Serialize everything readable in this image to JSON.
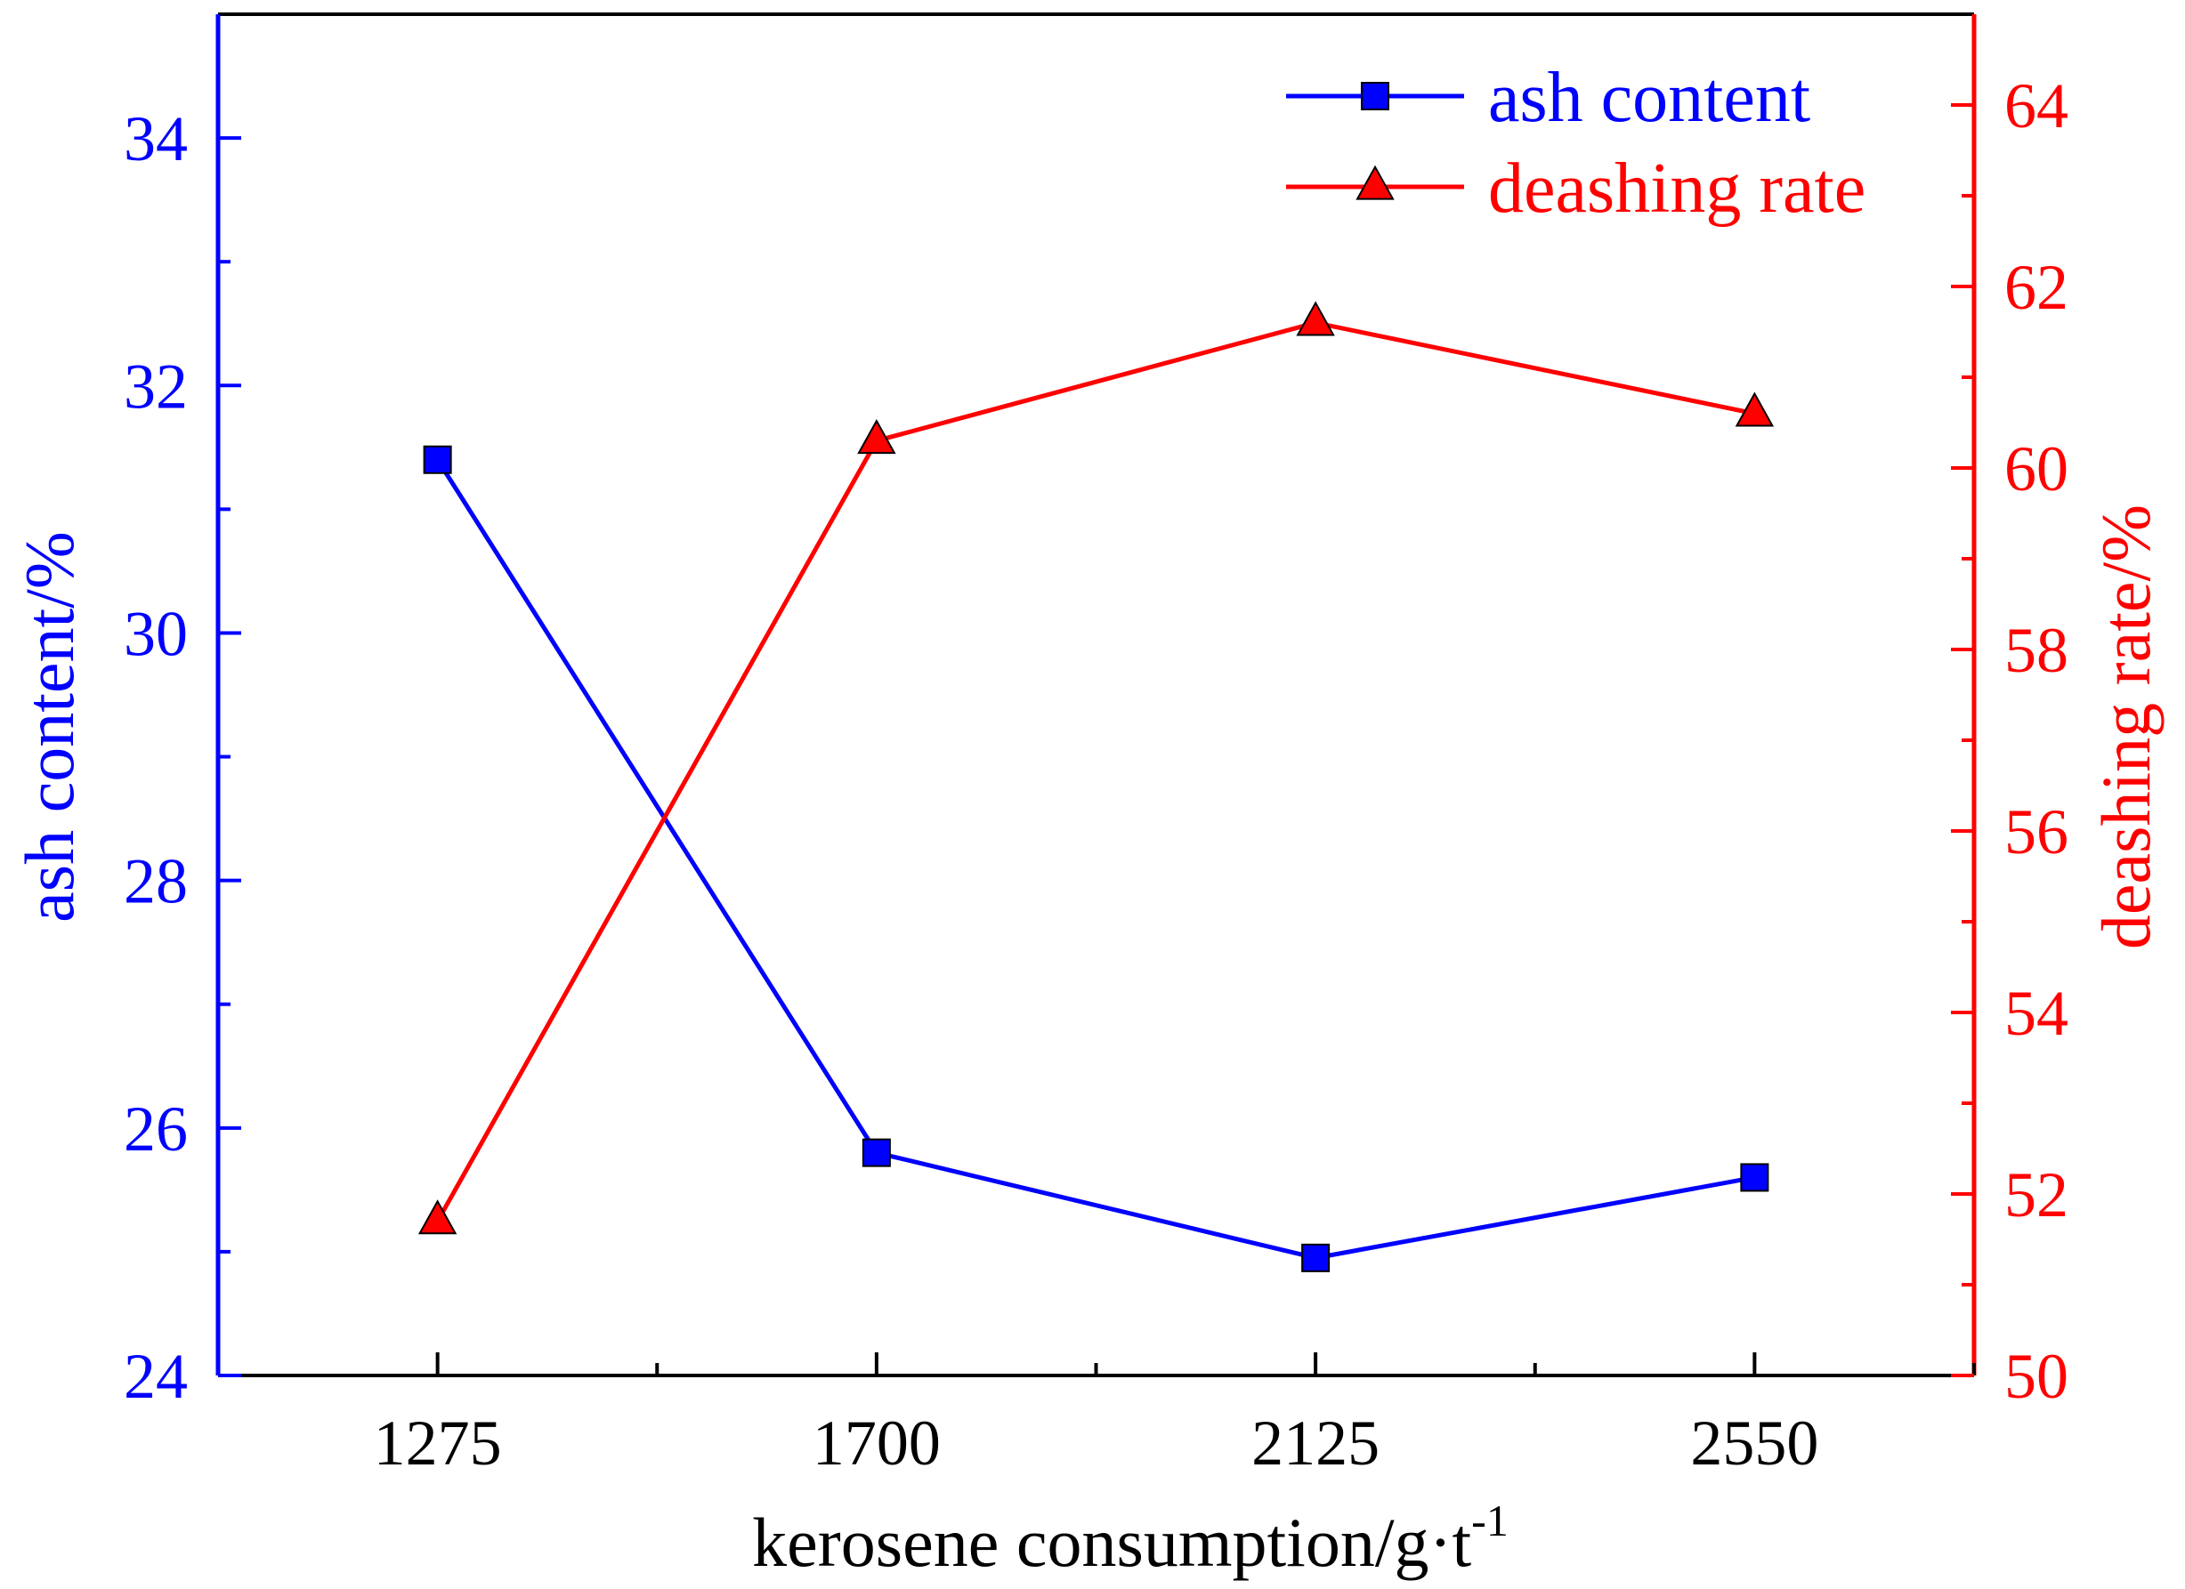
{
  "chart_data": {
    "type": "line",
    "x": [
      1275,
      1700,
      2125,
      2550
    ],
    "x_tick_labels": [
      "1275",
      "1700",
      "2125",
      "2550"
    ],
    "xlim": [
      1062.5,
      2762.5
    ],
    "xlabel": {
      "main": "kerosene consumption/g·t",
      "sup": "-1"
    },
    "y_left": {
      "label": "ash content/%",
      "ylim": [
        24,
        35
      ],
      "ticks": [
        24,
        26,
        28,
        30,
        32,
        34
      ],
      "tick_labels": [
        "24",
        "26",
        "28",
        "30",
        "32",
        "34"
      ],
      "minor_ticks": [
        25,
        27,
        29,
        31,
        33
      ],
      "color": "#0000ff"
    },
    "y_right": {
      "label": "deashing rate/%",
      "ylim": [
        50,
        65
      ],
      "ticks": [
        50,
        52,
        54,
        56,
        58,
        60,
        62,
        64
      ],
      "tick_labels": [
        "50",
        "52",
        "54",
        "56",
        "58",
        "60",
        "62",
        "64"
      ],
      "minor_ticks": [
        51,
        53,
        55,
        57,
        59,
        61,
        63
      ],
      "color": "#ff0000"
    },
    "series": [
      {
        "name": "ash content",
        "axis": "left",
        "marker": "square",
        "color": "#0000ff",
        "values": [
          31.4,
          25.8,
          24.95,
          25.6
        ]
      },
      {
        "name": "deashing rate",
        "axis": "right",
        "marker": "triangle",
        "color": "#ff0000",
        "values": [
          51.7,
          60.3,
          61.6,
          60.6
        ]
      }
    ],
    "legend_placement": "top-right",
    "grid": false
  }
}
